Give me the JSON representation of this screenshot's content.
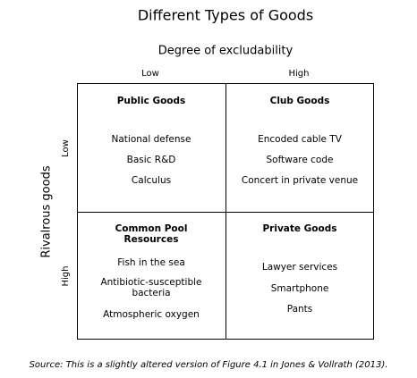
{
  "title": "Different Types of Goods",
  "x_axis": {
    "label": "Degree of excludability",
    "categories": [
      "Low",
      "High"
    ]
  },
  "y_axis": {
    "label": "Rivalrous goods",
    "categories": [
      "Low",
      "High"
    ]
  },
  "cells": [
    {
      "title": [
        "Public Goods"
      ],
      "items": [
        [
          "National defense"
        ],
        [
          "Basic R&D"
        ],
        [
          "Calculus"
        ]
      ]
    },
    {
      "title": [
        "Club Goods"
      ],
      "items": [
        [
          "Encoded cable TV"
        ],
        [
          "Software code"
        ],
        [
          "Concert in private venue"
        ]
      ]
    },
    {
      "title": [
        "Common Pool",
        "Resources"
      ],
      "items": [
        [
          "Fish in the sea"
        ],
        [
          "Antibiotic-susceptible",
          "bacteria"
        ],
        [
          "Atmospheric oxygen"
        ]
      ]
    },
    {
      "title": [
        "Private Goods"
      ],
      "items": [
        [
          "Lawyer services"
        ],
        [
          "Smartphone"
        ],
        [
          "Pants"
        ]
      ]
    }
  ],
  "source": "Source: This is a slightly altered version of Figure 4.1 in Jones & Vollrath (2013)."
}
